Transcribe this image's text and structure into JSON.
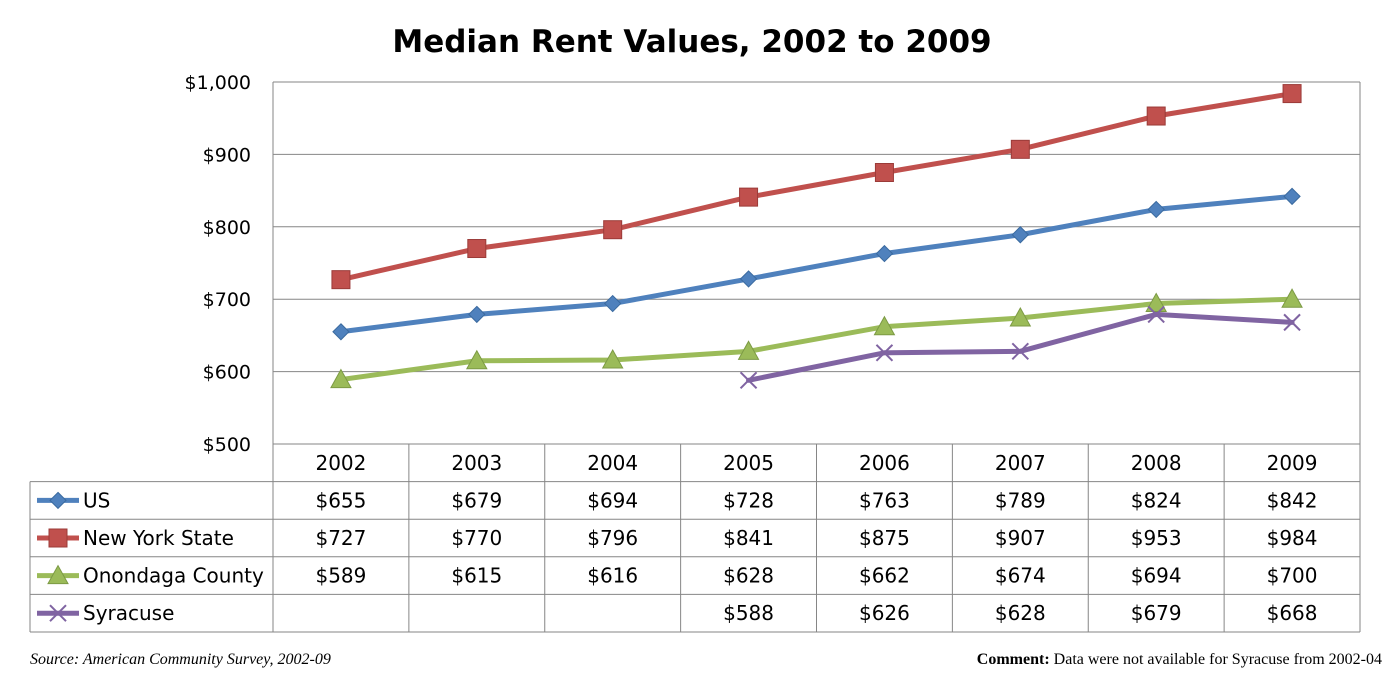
{
  "chart_data": {
    "type": "line",
    "title": "Median Rent Values, 2002 to 2009",
    "categories": [
      "2002",
      "2003",
      "2004",
      "2005",
      "2006",
      "2007",
      "2008",
      "2009"
    ],
    "ylim": [
      500,
      1000
    ],
    "yticks": [
      500,
      600,
      700,
      800,
      900,
      1000
    ],
    "ytick_labels": [
      "$500",
      "$600",
      "$700",
      "$800",
      "$900",
      "$1,000"
    ],
    "grid": true,
    "data_table": true,
    "series": [
      {
        "name": "US",
        "color": "#4F81BD",
        "marker": "diamond",
        "values": [
          655,
          679,
          694,
          728,
          763,
          789,
          824,
          842
        ],
        "labels": [
          "$655",
          "$679",
          "$694",
          "$728",
          "$763",
          "$789",
          "$824",
          "$842"
        ]
      },
      {
        "name": "New York State",
        "color": "#C0504D",
        "marker": "square",
        "values": [
          727,
          770,
          796,
          841,
          875,
          907,
          953,
          984
        ],
        "labels": [
          "$727",
          "$770",
          "$796",
          "$841",
          "$875",
          "$907",
          "$953",
          "$984"
        ]
      },
      {
        "name": "Onondaga County",
        "color": "#9BBB59",
        "marker": "triangle",
        "values": [
          589,
          615,
          616,
          628,
          662,
          674,
          694,
          700
        ],
        "labels": [
          "$589",
          "$615",
          "$616",
          "$628",
          "$662",
          "$674",
          "$694",
          "$700"
        ]
      },
      {
        "name": "Syracuse",
        "color": "#8064A2",
        "marker": "x",
        "values": [
          null,
          null,
          null,
          588,
          626,
          628,
          679,
          668
        ],
        "labels": [
          "",
          "",
          "",
          "$588",
          "$626",
          "$628",
          "$679",
          "$668"
        ]
      }
    ]
  },
  "footer": {
    "source": "Source: American Community Survey, 2002-09",
    "comment_label": "Comment:",
    "comment_text": " Data were not available for Syracuse from 2002-04"
  }
}
